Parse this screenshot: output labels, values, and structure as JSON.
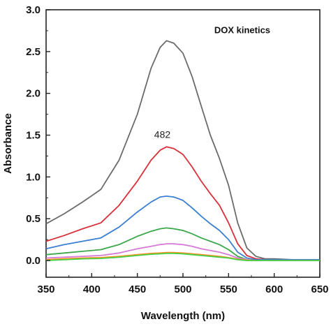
{
  "chart_data": {
    "type": "line",
    "title": "",
    "xlabel": "Wavelength (nm)",
    "ylabel": "Absorbance",
    "xlim": [
      350,
      650
    ],
    "ylim": [
      -0.2,
      3.0
    ],
    "x_ticks": [
      350,
      400,
      450,
      500,
      550,
      600,
      650
    ],
    "y_ticks": [
      0.0,
      0.5,
      1.0,
      1.5,
      2.0,
      2.5,
      3.0
    ],
    "x_tick_labels": [
      "350",
      "400",
      "450",
      "500",
      "550",
      "600",
      "650"
    ],
    "y_tick_labels": [
      "0.0",
      "0.5",
      "1.0",
      "1.5",
      "2.0",
      "2.5",
      "3.0"
    ],
    "grid": false,
    "legend": "none",
    "annotations": [
      {
        "text": "DOX kinetics",
        "x": 565,
        "y": 2.72
      },
      {
        "text": "482",
        "x": 482,
        "y": 1.5
      }
    ],
    "x": [
      350,
      370,
      390,
      410,
      430,
      450,
      465,
      475,
      482,
      490,
      500,
      510,
      520,
      530,
      540,
      550,
      560,
      570,
      580,
      590,
      600,
      620,
      650
    ],
    "series": [
      {
        "color": "#6b6b6b",
        "values": [
          0.44,
          0.56,
          0.7,
          0.85,
          1.2,
          1.75,
          2.3,
          2.55,
          2.63,
          2.6,
          2.48,
          2.2,
          1.85,
          1.5,
          1.22,
          0.9,
          0.45,
          0.15,
          0.05,
          0.02,
          0.02,
          0.01,
          0.01
        ]
      },
      {
        "color": "#d9303a",
        "values": [
          0.23,
          0.3,
          0.38,
          0.45,
          0.66,
          0.95,
          1.2,
          1.32,
          1.36,
          1.34,
          1.27,
          1.12,
          0.95,
          0.8,
          0.66,
          0.45,
          0.2,
          0.06,
          0.02,
          0.01,
          0.01,
          0.01,
          0.01
        ]
      },
      {
        "color": "#3a7fd1",
        "values": [
          0.14,
          0.19,
          0.23,
          0.27,
          0.4,
          0.58,
          0.7,
          0.76,
          0.77,
          0.76,
          0.72,
          0.63,
          0.53,
          0.44,
          0.36,
          0.25,
          0.1,
          0.03,
          0.01,
          0.01,
          0.01,
          0.01,
          0.01
        ]
      },
      {
        "color": "#3aa84a",
        "values": [
          0.07,
          0.09,
          0.11,
          0.13,
          0.19,
          0.29,
          0.35,
          0.38,
          0.39,
          0.38,
          0.36,
          0.32,
          0.27,
          0.23,
          0.19,
          0.13,
          0.05,
          0.01,
          0.0,
          0.0,
          0.0,
          0.0,
          0.0
        ]
      },
      {
        "color": "#d57ad6",
        "values": [
          0.03,
          0.04,
          0.05,
          0.06,
          0.09,
          0.14,
          0.17,
          0.19,
          0.2,
          0.2,
          0.19,
          0.17,
          0.14,
          0.12,
          0.1,
          0.07,
          0.03,
          0.01,
          0.0,
          0.0,
          0.0,
          0.0,
          0.0
        ]
      },
      {
        "color": "#ff8c1a",
        "values": [
          0.01,
          0.02,
          0.03,
          0.035,
          0.05,
          0.07,
          0.085,
          0.09,
          0.095,
          0.095,
          0.09,
          0.08,
          0.07,
          0.06,
          0.05,
          0.035,
          0.015,
          0.005,
          0.0,
          0.0,
          0.0,
          0.0,
          0.0
        ]
      },
      {
        "color": "#45d24a",
        "values": [
          0.0,
          0.01,
          0.02,
          0.025,
          0.04,
          0.06,
          0.075,
          0.08,
          0.085,
          0.085,
          0.08,
          0.07,
          0.06,
          0.05,
          0.04,
          0.03,
          0.01,
          0.0,
          0.0,
          0.0,
          0.0,
          0.0,
          0.0
        ]
      }
    ]
  }
}
